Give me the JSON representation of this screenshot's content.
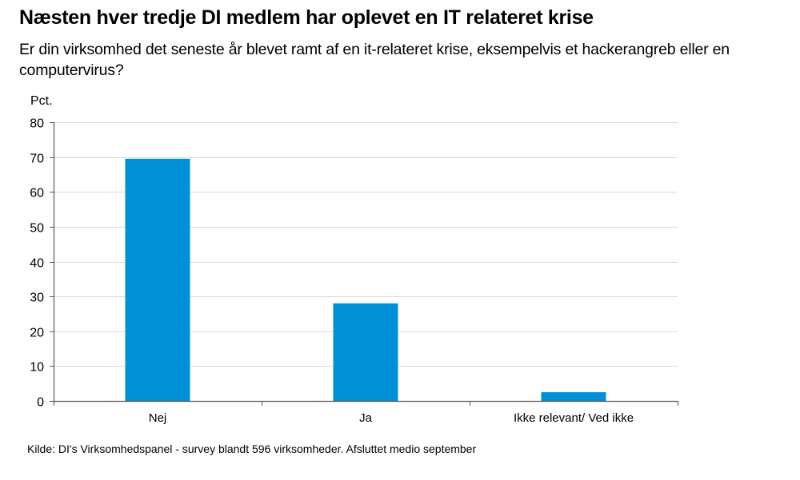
{
  "title": "Næsten hver tredje DI medlem har oplevet en IT relateret krise",
  "subtitle": "Er din virksomhed det seneste år blevet ramt af en it-relateret krise, eksempelvis et hackerangreb eller en computervirus?",
  "source": "Kilde: DI's Virksomhedspanel - survey blandt 596 virksomheder. Afsluttet medio september",
  "colors": {
    "bar": "#0090D8",
    "grid": "#D9D9D9",
    "axis": "#595959"
  },
  "chart_data": {
    "type": "bar",
    "title": "Næsten hver tredje DI medlem har oplevet en IT relateret krise",
    "subtitle": "Er din virksomhed det seneste år blevet ramt af en it-relateret krise, eksempelvis et hackerangreb eller en computervirus?",
    "xlabel": "",
    "ylabel": "Pct.",
    "categories": [
      "Nej",
      "Ja",
      "Ikke relevant/ Ved ikke"
    ],
    "values": [
      69.5,
      28,
      2.5
    ],
    "ylim": [
      0,
      80
    ],
    "yticks": [
      0,
      10,
      20,
      30,
      40,
      50,
      60,
      70,
      80
    ],
    "ytick_labels": [
      "0",
      "10",
      "20",
      "30",
      "40",
      "50",
      "60",
      "70",
      "80"
    ],
    "grid": true,
    "legend": "none"
  }
}
